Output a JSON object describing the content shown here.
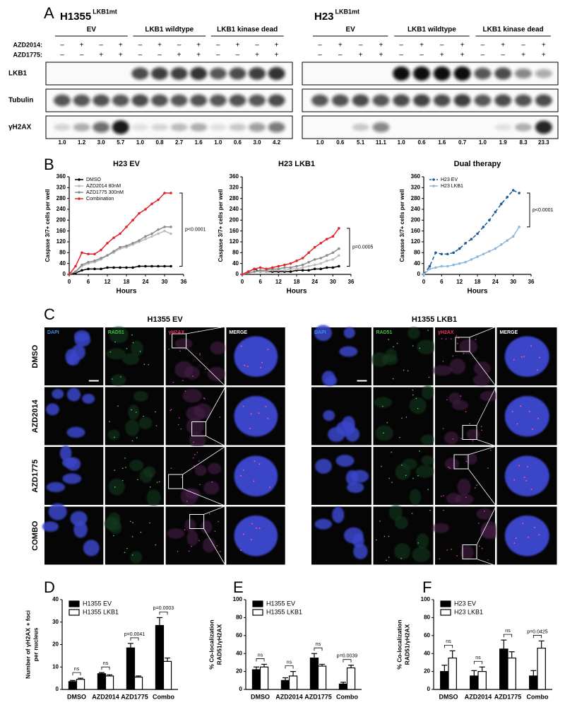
{
  "panel_labels": [
    "A",
    "B",
    "C",
    "D",
    "E",
    "F"
  ],
  "blots": [
    {
      "cell_line": "H1355",
      "superscript": "LKB1mt",
      "groups": [
        "EV",
        "LKB1 wildtype",
        "LKB1 kinase dead"
      ],
      "treatment_labels": [
        "AZD2014:",
        "AZD1775:"
      ],
      "treatments": [
        [
          "–",
          "+",
          "–",
          "+",
          "–",
          "+",
          "–",
          "+",
          "–",
          "+",
          "–",
          "+"
        ],
        [
          "–",
          "–",
          "+",
          "+",
          "–",
          "–",
          "+",
          "+",
          "–",
          "–",
          "+",
          "+"
        ]
      ],
      "rows": [
        "LKB1",
        "Tubulin",
        "γH2AX"
      ],
      "quantification": [
        "1.0",
        "1.2",
        "3.0",
        "5.7",
        "1.0",
        "0.8",
        "2.7",
        "1.6",
        "1.0",
        "0.6",
        "3.0",
        "4.2"
      ]
    },
    {
      "cell_line": "H23",
      "superscript": "LKB1mt",
      "groups": [
        "EV",
        "LKB1 wildtype",
        "LKB1 kinase dead"
      ],
      "treatments": [
        [
          "–",
          "+",
          "–",
          "+",
          "–",
          "+",
          "–",
          "+",
          "–",
          "+",
          "–",
          "+"
        ],
        [
          "–",
          "–",
          "+",
          "+",
          "–",
          "–",
          "+",
          "+",
          "–",
          "–",
          "+",
          "+"
        ]
      ],
      "quantification": [
        "1.0",
        "0.6",
        "5.1",
        "11.1",
        "1.0",
        "0.6",
        "1.6",
        "0.7",
        "1.0",
        "1.9",
        "8.3",
        "23.3"
      ]
    }
  ],
  "microscopy": [
    {
      "title": "H1355 EV",
      "channels": [
        "DAPI",
        "RAD51",
        "γH2AX",
        "MERGE"
      ],
      "conditions": [
        "DMSO",
        "AZD2014",
        "AZD1775",
        "COMBO"
      ]
    },
    {
      "title": "H1355 LKB1",
      "channels": [
        "DAPI",
        "RAD51",
        "γH2AX",
        "MERGE"
      ]
    }
  ],
  "chart_data": [
    {
      "type": "line",
      "title": "H23 EV",
      "xlabel": "Hours",
      "ylabel": "Caspase 3/7+ cells per well",
      "legend": "upper left",
      "x": [
        0,
        2,
        4,
        6,
        8,
        10,
        12,
        14,
        16,
        18,
        20,
        22,
        24,
        26,
        28,
        30,
        32
      ],
      "xlim": [
        0,
        36
      ],
      "xticks": [
        0,
        6,
        12,
        18,
        24,
        30,
        36
      ],
      "ylim": [
        0,
        360
      ],
      "yticks": [
        0,
        40,
        80,
        120,
        160,
        200,
        240,
        280,
        320,
        360
      ],
      "series": [
        {
          "name": "DMSO",
          "color": "#000000",
          "values": [
            0,
            5,
            15,
            20,
            20,
            20,
            25,
            25,
            25,
            25,
            25,
            30,
            30,
            30,
            30,
            30,
            30
          ]
        },
        {
          "name": "AZD2014 80nM",
          "color": "#bdbdbd",
          "values": [
            0,
            10,
            30,
            40,
            45,
            55,
            70,
            80,
            95,
            100,
            110,
            120,
            130,
            140,
            150,
            160,
            150
          ]
        },
        {
          "name": "AZD1775 300nM",
          "color": "#8c8c8c",
          "values": [
            0,
            10,
            35,
            45,
            50,
            60,
            70,
            85,
            100,
            105,
            115,
            125,
            140,
            150,
            165,
            175,
            175
          ]
        },
        {
          "name": "Combination",
          "color": "#e0242b",
          "values": [
            0,
            30,
            80,
            75,
            75,
            90,
            115,
            135,
            150,
            175,
            200,
            225,
            240,
            260,
            275,
            300,
            300
          ]
        }
      ],
      "annotations": [
        "p<0.0001"
      ]
    },
    {
      "type": "line",
      "title": "H23 LKB1",
      "xlabel": "Hours",
      "ylabel": "Caspase 3/7+ cells per well",
      "x": [
        0,
        2,
        4,
        6,
        8,
        10,
        12,
        14,
        16,
        18,
        20,
        22,
        24,
        26,
        28,
        30,
        32
      ],
      "xlim": [
        0,
        36
      ],
      "xticks": [
        0,
        6,
        12,
        18,
        24,
        30,
        36
      ],
      "ylim": [
        0,
        360
      ],
      "yticks": [
        0,
        40,
        80,
        120,
        160,
        200,
        240,
        280,
        320,
        360
      ],
      "series": [
        {
          "color": "#000000",
          "values": [
            0,
            10,
            20,
            10,
            10,
            10,
            10,
            10,
            10,
            15,
            15,
            15,
            20,
            20,
            25,
            25,
            30
          ]
        },
        {
          "color": "#bdbdbd",
          "values": [
            0,
            5,
            10,
            10,
            10,
            15,
            15,
            15,
            20,
            20,
            25,
            30,
            35,
            40,
            50,
            55,
            70
          ]
        },
        {
          "color": "#8c8c8c",
          "values": [
            0,
            5,
            10,
            15,
            15,
            20,
            20,
            25,
            25,
            30,
            35,
            45,
            55,
            60,
            70,
            80,
            95
          ]
        },
        {
          "color": "#e0242b",
          "values": [
            0,
            10,
            20,
            25,
            20,
            25,
            30,
            35,
            40,
            50,
            60,
            80,
            100,
            115,
            130,
            140,
            170
          ]
        }
      ],
      "annotations": [
        "p=0.0005"
      ]
    },
    {
      "type": "line",
      "title": "Dual therapy",
      "xlabel": "Hours",
      "ylabel": "Caspase 3/7+ cells per well",
      "legend": "upper left",
      "x": [
        0,
        2,
        4,
        6,
        8,
        10,
        12,
        14,
        16,
        18,
        20,
        22,
        24,
        26,
        28,
        30,
        32
      ],
      "xlim": [
        0,
        36
      ],
      "xticks": [
        0,
        6,
        12,
        18,
        24,
        30,
        36
      ],
      "ylim": [
        0,
        360
      ],
      "yticks": [
        0,
        40,
        80,
        120,
        160,
        200,
        240,
        280,
        320,
        360
      ],
      "series": [
        {
          "name": "H23 EV",
          "color": "#1a5a96",
          "line_style": "dashed",
          "values": [
            0,
            30,
            80,
            75,
            75,
            80,
            95,
            115,
            130,
            150,
            175,
            200,
            230,
            260,
            285,
            310,
            300
          ]
        },
        {
          "name": "H23 LKB1",
          "color": "#8fb8da",
          "values": [
            0,
            20,
            25,
            30,
            30,
            35,
            40,
            45,
            55,
            65,
            75,
            85,
            95,
            110,
            125,
            140,
            175
          ]
        }
      ],
      "annotations": [
        "p<0.0001"
      ]
    },
    {
      "type": "bar",
      "ylabel": [
        "Number of γH2AX + foci",
        "per nucleus"
      ],
      "categories": [
        "DMSO",
        "AZD2014",
        "AZD1775",
        "Combo"
      ],
      "ylim": [
        0,
        40
      ],
      "yticks": [
        0,
        10,
        20,
        30,
        40
      ],
      "series": [
        {
          "name": "H1355 EV",
          "color": "#000000",
          "values": [
            3.5,
            7,
            18.5,
            28.5
          ],
          "errors": [
            0.5,
            0.5,
            2,
            3.5
          ]
        },
        {
          "name": "H1355 LKB1",
          "color": "#ffffff",
          "values": [
            4.5,
            6,
            5.5,
            12.5
          ],
          "errors": [
            0.5,
            0.5,
            0.5,
            1.5
          ]
        }
      ],
      "annotations": [
        "ns",
        "ns",
        "p=0.0041",
        "p=0.0003"
      ]
    },
    {
      "type": "bar",
      "ylabel": [
        "% Co-localization",
        "RAD51/γH2AX"
      ],
      "categories": [
        "DMSO",
        "AZD2014",
        "AZD1775",
        "Combo"
      ],
      "ylim": [
        0,
        100
      ],
      "yticks": [
        0,
        20,
        40,
        60,
        80,
        100
      ],
      "series": [
        {
          "name": "H1355 EV",
          "color": "#000000",
          "values": [
            22,
            10,
            35,
            6
          ],
          "errors": [
            3,
            3,
            5,
            2
          ]
        },
        {
          "name": "H1355 LKB1",
          "color": "#ffffff",
          "values": [
            25,
            15,
            26,
            24
          ],
          "errors": [
            3,
            5,
            2,
            3
          ]
        }
      ],
      "annotations": [
        "ns",
        "ns",
        "ns",
        "p=0.0039"
      ]
    },
    {
      "type": "bar",
      "ylabel": [
        "% Co-localization",
        "RAD51/γH2AX"
      ],
      "categories": [
        "DMSO",
        "AZD2014",
        "AZD1775",
        "Combo"
      ],
      "ylim": [
        0,
        100
      ],
      "yticks": [
        0,
        20,
        40,
        60,
        80,
        100
      ],
      "series": [
        {
          "name": "H23 EV",
          "color": "#000000",
          "values": [
            20,
            15,
            45,
            15
          ],
          "errors": [
            7,
            6,
            10,
            6
          ]
        },
        {
          "name": "H23 LKB1",
          "color": "#ffffff",
          "values": [
            35,
            20,
            35,
            46
          ],
          "errors": [
            8,
            5,
            7,
            8
          ]
        }
      ],
      "annotations": [
        "ns",
        "ns",
        "ns",
        "p=0.0425"
      ]
    }
  ]
}
